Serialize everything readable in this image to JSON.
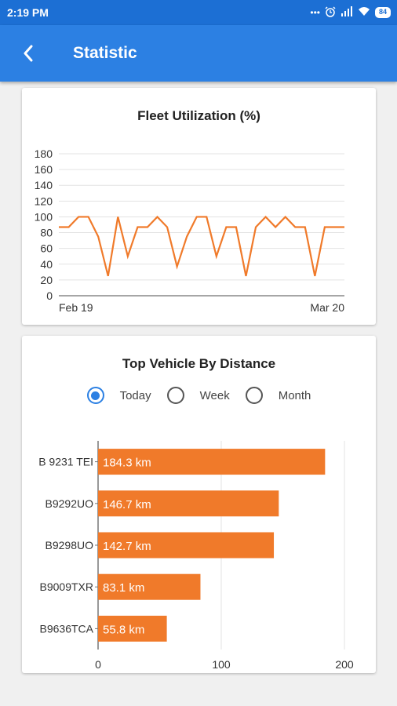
{
  "status_bar": {
    "time": "2:19 PM",
    "icons": [
      "dots-icon",
      "alarm-icon",
      "signal-icon",
      "wifi-icon"
    ],
    "battery": "84"
  },
  "app_bar": {
    "title": "Statistic",
    "background": "#2c80e3"
  },
  "fleet_card": {
    "title": "Fleet Utilization (%)"
  },
  "distance_card": {
    "title": "Top Vehicle By Distance",
    "filters": [
      {
        "label": "Today",
        "selected": true
      },
      {
        "label": "Week",
        "selected": false
      },
      {
        "label": "Month",
        "selected": false
      }
    ]
  },
  "chart_data": [
    {
      "type": "line",
      "title": "Fleet Utilization (%)",
      "x_tick_labels": [
        "Feb 19",
        "Mar 20"
      ],
      "ylim": [
        0,
        180
      ],
      "y_ticks": [
        0,
        20,
        40,
        60,
        80,
        100,
        120,
        140,
        160,
        180
      ],
      "grid": true,
      "color": "#f07a2a",
      "values": [
        87,
        87,
        100,
        100,
        75,
        25,
        100,
        50,
        87,
        87,
        100,
        87,
        37,
        75,
        100,
        100,
        50,
        87,
        87,
        25,
        87,
        100,
        87,
        100,
        87,
        87,
        25,
        87,
        87,
        87
      ]
    },
    {
      "type": "bar",
      "orientation": "horizontal",
      "title": "Top Vehicle By Distance",
      "categories": [
        "B 9231 TEI",
        "B9292UO",
        "B9298UO",
        "B9009TXR",
        "B9636TCA"
      ],
      "values": [
        184.3,
        146.7,
        142.7,
        83.1,
        55.8
      ],
      "data_labels": [
        "184.3 km",
        "146.7 km",
        "142.7 km",
        "83.1 km",
        "55.8 km"
      ],
      "xlim": [
        0,
        200
      ],
      "x_ticks": [
        0,
        100,
        200
      ],
      "color": "#f07a2a"
    }
  ]
}
